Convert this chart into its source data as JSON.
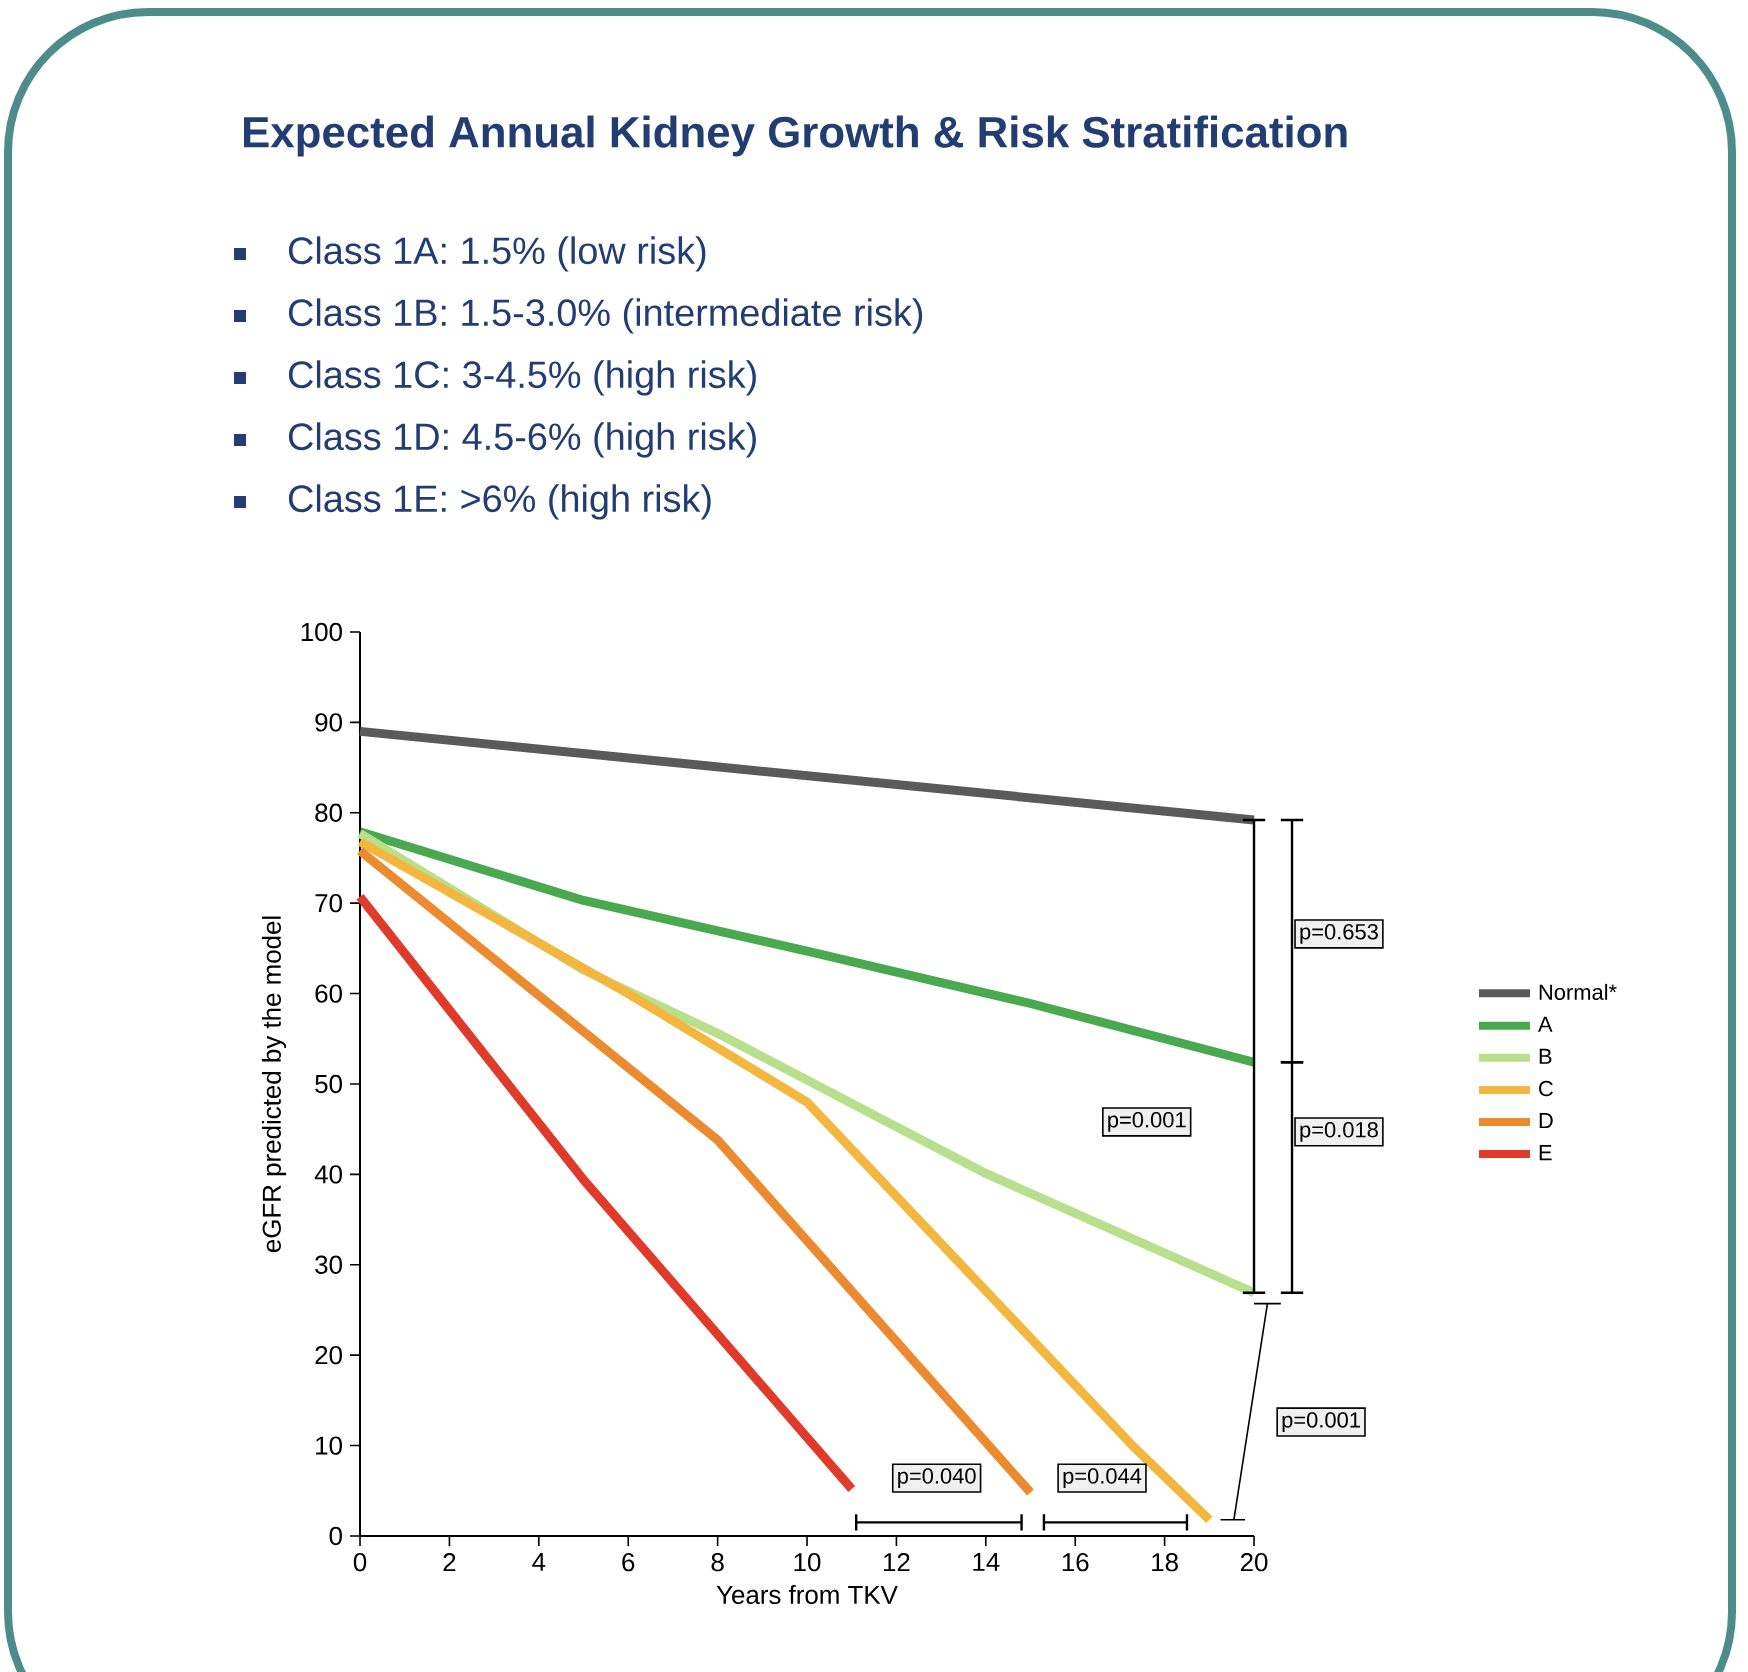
{
  "chart_data": {
    "type": "line",
    "title": "Expected Annual Kidney Growth & Risk Stratification",
    "xlabel": "Years from TKV",
    "ylabel": "eGFR predicted by the model",
    "xlim": [
      0,
      20
    ],
    "ylim": [
      0,
      100
    ],
    "xticks": [
      0,
      2,
      4,
      6,
      8,
      10,
      12,
      14,
      16,
      18,
      20
    ],
    "yticks": [
      0,
      10,
      20,
      30,
      40,
      50,
      60,
      70,
      80,
      90,
      100
    ],
    "grid": false,
    "legend": "right",
    "marker": "none",
    "line_style": "solid",
    "series": [
      {
        "name": "Normal*",
        "color": "#5a5a5a",
        "x": [
          0,
          20
        ],
        "values": [
          89,
          79.2
        ]
      },
      {
        "name": "A",
        "color": "#4aa84f",
        "x": [
          0,
          5,
          10,
          15,
          20
        ],
        "values": [
          77.9,
          70.3,
          64.7,
          58.9,
          52.4
        ]
      },
      {
        "name": "B",
        "color": "#b8e08c",
        "x": [
          0,
          5,
          8,
          14,
          20
        ],
        "values": [
          77.7,
          62.6,
          55.6,
          40.1,
          26.9
        ]
      },
      {
        "name": "C",
        "color": "#f3b63e",
        "x": [
          0,
          6,
          10,
          17.3,
          19
        ],
        "values": [
          76.8,
          60,
          48,
          9.9,
          1.8
        ]
      },
      {
        "name": "D",
        "color": "#ec8a30",
        "x": [
          0,
          8,
          15
        ],
        "values": [
          75.8,
          43.8,
          4.8
        ]
      },
      {
        "name": "E",
        "color": "#e03a2a",
        "x": [
          0,
          5,
          11
        ],
        "values": [
          70.7,
          39.4,
          5.2
        ]
      }
    ],
    "annotations": [
      "Class 1A: 1.5% (low risk)",
      "Class 1B: 1.5-3.0% (intermediate risk)",
      "Class 1C: 3-4.5% (high risk)",
      "Class 1D: 4.5-6% (high risk)",
      "Class 1E: >6% (high risk)",
      "p=0.653",
      "p=0.001",
      "p=0.018",
      "p=0.001",
      "p=0.040",
      "p=0.044"
    ]
  }
}
